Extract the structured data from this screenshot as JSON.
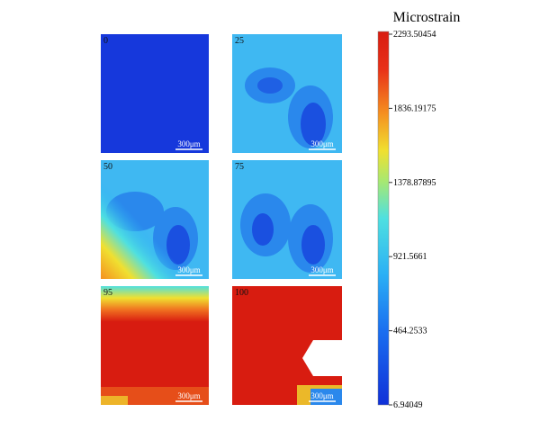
{
  "colorbar": {
    "title": "Microstrain",
    "ticks": [
      2293.50454,
      1836.19175,
      1378.87895,
      921.5661,
      464.2533,
      6.94049
    ]
  },
  "panels": [
    {
      "label": "0",
      "scale_bar": "300μm"
    },
    {
      "label": "25",
      "scale_bar": "300μm"
    },
    {
      "label": "50",
      "scale_bar": "300μm"
    },
    {
      "label": "75",
      "scale_bar": "300μm"
    },
    {
      "label": "95",
      "scale_bar": "300μm"
    },
    {
      "label": "100",
      "scale_bar": "300μm"
    }
  ]
}
